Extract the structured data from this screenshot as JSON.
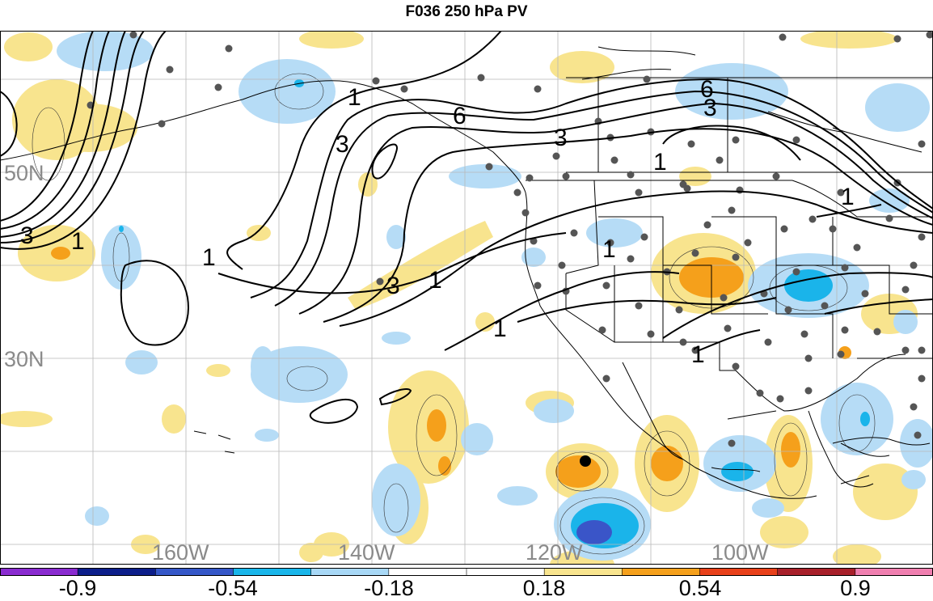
{
  "title": "F036 250 hPa PV",
  "map": {
    "lat_labels": [
      "50N",
      "30N"
    ],
    "lon_labels": [
      "160W",
      "140W",
      "120W",
      "100W"
    ],
    "contour_labels": [
      "1",
      "3",
      "6"
    ],
    "colors": {
      "pos_light": "#f8e48e",
      "pos_mid": "#f5a01b",
      "neg_light": "#b6dcf6",
      "neg_mid": "#1ab4ea",
      "neg_dark": "#3a55c8",
      "border": "#000000",
      "grid": "#b8b8b8",
      "station": "#555555"
    }
  },
  "colorbar": {
    "labels": [
      "-0.9",
      "-0.54",
      "-0.18",
      "0.18",
      "0.54",
      "0.9"
    ],
    "colors": [
      "#8a2bd0",
      "#0c1e8a",
      "#3557c8",
      "#19b6ea",
      "#a8d8f6",
      "#ffffff",
      "#ffffff",
      "#f8e48e",
      "#f5a01b",
      "#e8401a",
      "#a8202a",
      "#f07fb0"
    ]
  }
}
